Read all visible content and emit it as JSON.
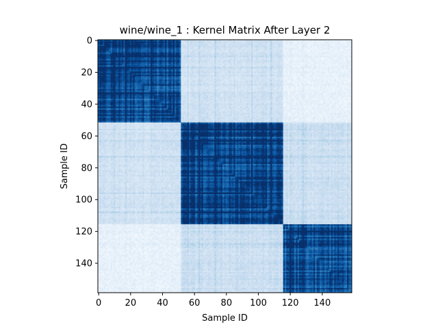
{
  "chart_data": {
    "type": "heatmap",
    "title": "wine/wine_1 : Kernel Matrix After Layer 2",
    "xlabel": "Sample ID",
    "ylabel": "Sample ID",
    "n_samples": 159,
    "colormap": "Blues",
    "xlim": [
      -0.5,
      158.5
    ],
    "ylim": [
      158.5,
      -0.5
    ],
    "x_ticks": [
      0,
      20,
      40,
      60,
      80,
      100,
      120,
      140
    ],
    "x_tick_labels": [
      "0",
      "20",
      "40",
      "60",
      "80",
      "100",
      "120",
      "140"
    ],
    "y_ticks": [
      0,
      20,
      40,
      60,
      80,
      100,
      120,
      140
    ],
    "y_tick_labels": [
      "0",
      "20",
      "40",
      "60",
      "80",
      "100",
      "120",
      "140"
    ],
    "clusters": [
      {
        "start": 0,
        "end": 52
      },
      {
        "start": 52,
        "end": 116
      },
      {
        "start": 116,
        "end": 159
      }
    ],
    "block_similarity": [
      [
        0.9,
        0.2,
        0.08
      ],
      [
        0.2,
        0.92,
        0.22
      ],
      [
        0.08,
        0.22,
        0.88
      ]
    ],
    "grid": false,
    "legend": "none"
  }
}
